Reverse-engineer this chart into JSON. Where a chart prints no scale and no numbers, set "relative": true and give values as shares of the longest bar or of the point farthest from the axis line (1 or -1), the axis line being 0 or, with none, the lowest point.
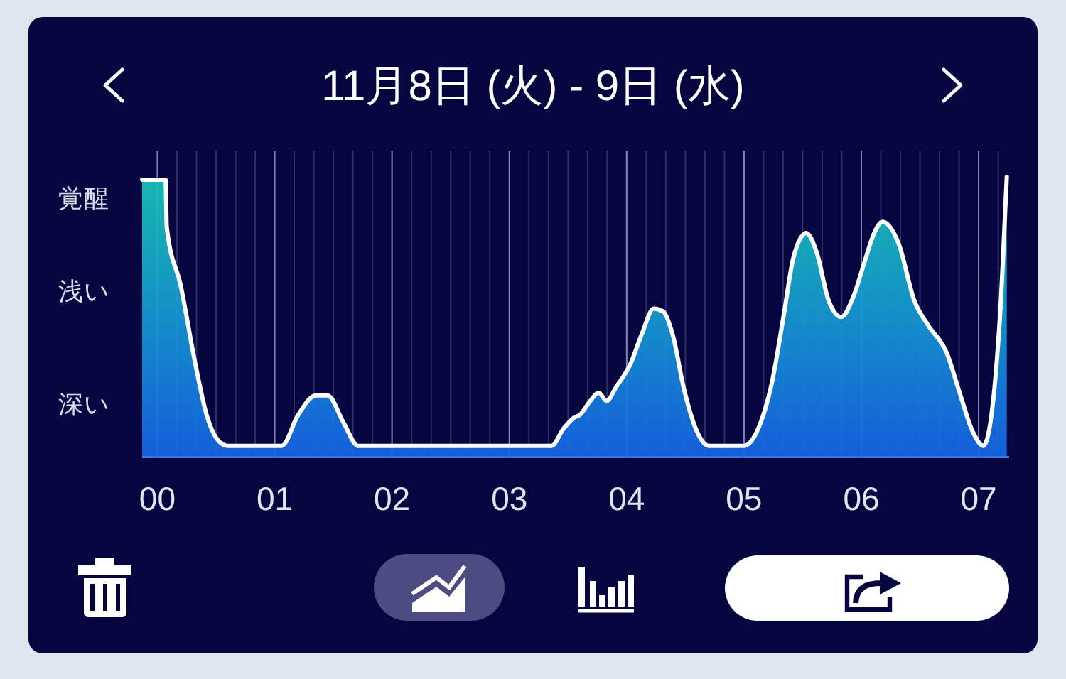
{
  "chart_data": {
    "type": "area",
    "title": "11月8日 (火) - 9日 (水)",
    "relative": true,
    "grid": "x",
    "xlim": [
      -0.13,
      7.26
    ],
    "xticks": [
      {
        "value": 0,
        "label": "00"
      },
      {
        "value": 0.1667,
        "label": null
      },
      {
        "value": 0.3333,
        "label": null
      },
      {
        "value": 0.5,
        "label": null
      },
      {
        "value": 0.6667,
        "label": null
      },
      {
        "value": 0.8333,
        "label": null
      },
      {
        "value": 1,
        "label": "01"
      },
      {
        "value": 1.1667,
        "label": null
      },
      {
        "value": 1.3333,
        "label": null
      },
      {
        "value": 1.5,
        "label": null
      },
      {
        "value": 1.6667,
        "label": null
      },
      {
        "value": 1.8333,
        "label": null
      },
      {
        "value": 2,
        "label": "02"
      },
      {
        "value": 2.1667,
        "label": null
      },
      {
        "value": 2.3333,
        "label": null
      },
      {
        "value": 2.5,
        "label": null
      },
      {
        "value": 2.6667,
        "label": null
      },
      {
        "value": 2.8333,
        "label": null
      },
      {
        "value": 3,
        "label": "03"
      },
      {
        "value": 3.1667,
        "label": null
      },
      {
        "value": 3.3333,
        "label": null
      },
      {
        "value": 3.5,
        "label": null
      },
      {
        "value": 3.6667,
        "label": null
      },
      {
        "value": 3.8333,
        "label": null
      },
      {
        "value": 4,
        "label": "04"
      },
      {
        "value": 4.1667,
        "label": null
      },
      {
        "value": 4.3333,
        "label": null
      },
      {
        "value": 4.5,
        "label": null
      },
      {
        "value": 4.6667,
        "label": null
      },
      {
        "value": 4.8333,
        "label": null
      },
      {
        "value": 5,
        "label": "05"
      },
      {
        "value": 5.1667,
        "label": null
      },
      {
        "value": 5.3333,
        "label": null
      },
      {
        "value": 5.5,
        "label": null
      },
      {
        "value": 5.6667,
        "label": null
      },
      {
        "value": 5.8333,
        "label": null
      },
      {
        "value": 6,
        "label": "06"
      },
      {
        "value": 6.1667,
        "label": null
      },
      {
        "value": 6.3333,
        "label": null
      },
      {
        "value": 6.5,
        "label": null
      },
      {
        "value": 6.6667,
        "label": null
      },
      {
        "value": 6.8333,
        "label": null
      },
      {
        "value": 7,
        "label": "07"
      },
      {
        "value": 7.1667,
        "label": null
      }
    ],
    "annotations": [
      "覚醒",
      "浅い",
      "深い"
    ],
    "x": [
      -0.13,
      0.07,
      0.08,
      0.2,
      0.32,
      0.42,
      0.54,
      0.6,
      1.06,
      1.2,
      1.35,
      1.45,
      1.59,
      1.71,
      3.36,
      3.46,
      3.55,
      3.6,
      3.69,
      3.76,
      3.83,
      3.91,
      4.03,
      4.13,
      4.23,
      4.31,
      4.39,
      4.49,
      4.59,
      4.7,
      5.0,
      5.12,
      5.24,
      5.34,
      5.42,
      5.53,
      5.62,
      5.72,
      5.83,
      5.93,
      6.03,
      6.11,
      6.18,
      6.32,
      6.45,
      6.57,
      6.73,
      6.83,
      6.95,
      7.04,
      7.18,
      7.24
    ],
    "series": [
      {
        "color": "#ffffff",
        "values": [
          0.99,
          0.99,
          0.82,
          0.61,
          0.34,
          0.15,
          0.05,
          0.04,
          0.04,
          0.15,
          0.22,
          0.22,
          0.12,
          0.04,
          0.04,
          0.1,
          0.14,
          0.15,
          0.2,
          0.23,
          0.2,
          0.25,
          0.33,
          0.44,
          0.53,
          0.52,
          0.44,
          0.24,
          0.1,
          0.04,
          0.04,
          0.1,
          0.27,
          0.51,
          0.71,
          0.8,
          0.73,
          0.56,
          0.5,
          0.57,
          0.7,
          0.8,
          0.84,
          0.76,
          0.56,
          0.47,
          0.37,
          0.24,
          0.09,
          0.04,
          0.49,
          1.0
        ]
      }
    ]
  }
}
